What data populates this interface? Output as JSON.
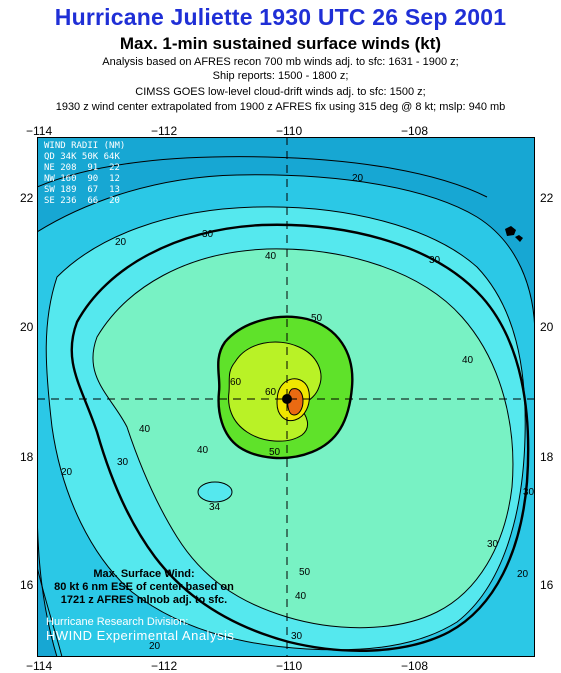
{
  "title": "Hurricane Juliette 1930 UTC 26 Sep 2001",
  "subtitle": "Max. 1-min sustained surface winds (kt)",
  "notes": [
    "Analysis based on AFRES recon 700 mb winds adj. to sfc: 1631 - 1900 z;",
    "Ship reports: 1500 - 1800 z;",
    "CIMSS GOES low-level cloud-drift winds adj. to sfc: 1500 z;",
    "1930 z wind center extrapolated from 1900 z AFRES fix using 315 deg @ 8 kt; mslp: 940 mb"
  ],
  "axes": {
    "x_ticks": [
      "−114",
      "−112",
      "−110",
      "−108"
    ],
    "y_ticks": [
      "22",
      "20",
      "18",
      "16"
    ]
  },
  "legend": {
    "header1": "WIND RADII (NM)",
    "header2": "QD 34K 50K 64K",
    "rows": [
      {
        "quad": "NE",
        "r34": "208",
        "r50": "91",
        "r64": "22"
      },
      {
        "quad": "NW",
        "r34": "160",
        "r50": "90",
        "r64": "12"
      },
      {
        "quad": "SW",
        "r34": "189",
        "r50": "67",
        "r64": "13"
      },
      {
        "quad": "SE",
        "r34": "236",
        "r50": "66",
        "r64": "20"
      }
    ]
  },
  "contour_labels": [
    "20",
    "30",
    "40",
    "50",
    "60",
    "60",
    "40",
    "50",
    "40",
    "30",
    "34",
    "30",
    "40",
    "20",
    "30",
    "20",
    "30",
    "20",
    "30",
    "40",
    "50",
    "20"
  ],
  "max_wind": {
    "line1": "Max. Surface Wind:",
    "line2": "80 kt 6 nm ESE of center based on",
    "line3": "1721 z AFRES mlnob adj. to sfc."
  },
  "credit": {
    "line1": "Hurricane Research Division:",
    "line2": "HWIND Experimental Analysis"
  },
  "colors": {
    "title": "#1f2fd6",
    "band_15_20": "#17a7d3",
    "band_20_30": "#2bc8e6",
    "band_30_40": "#55e8ee",
    "band_40_50": "#78f2c4",
    "band_50_60": "#5fe22a",
    "band_60_70": "#b9f226",
    "band_70_80": "#f0e600",
    "band_80": "#ea6a12"
  }
}
